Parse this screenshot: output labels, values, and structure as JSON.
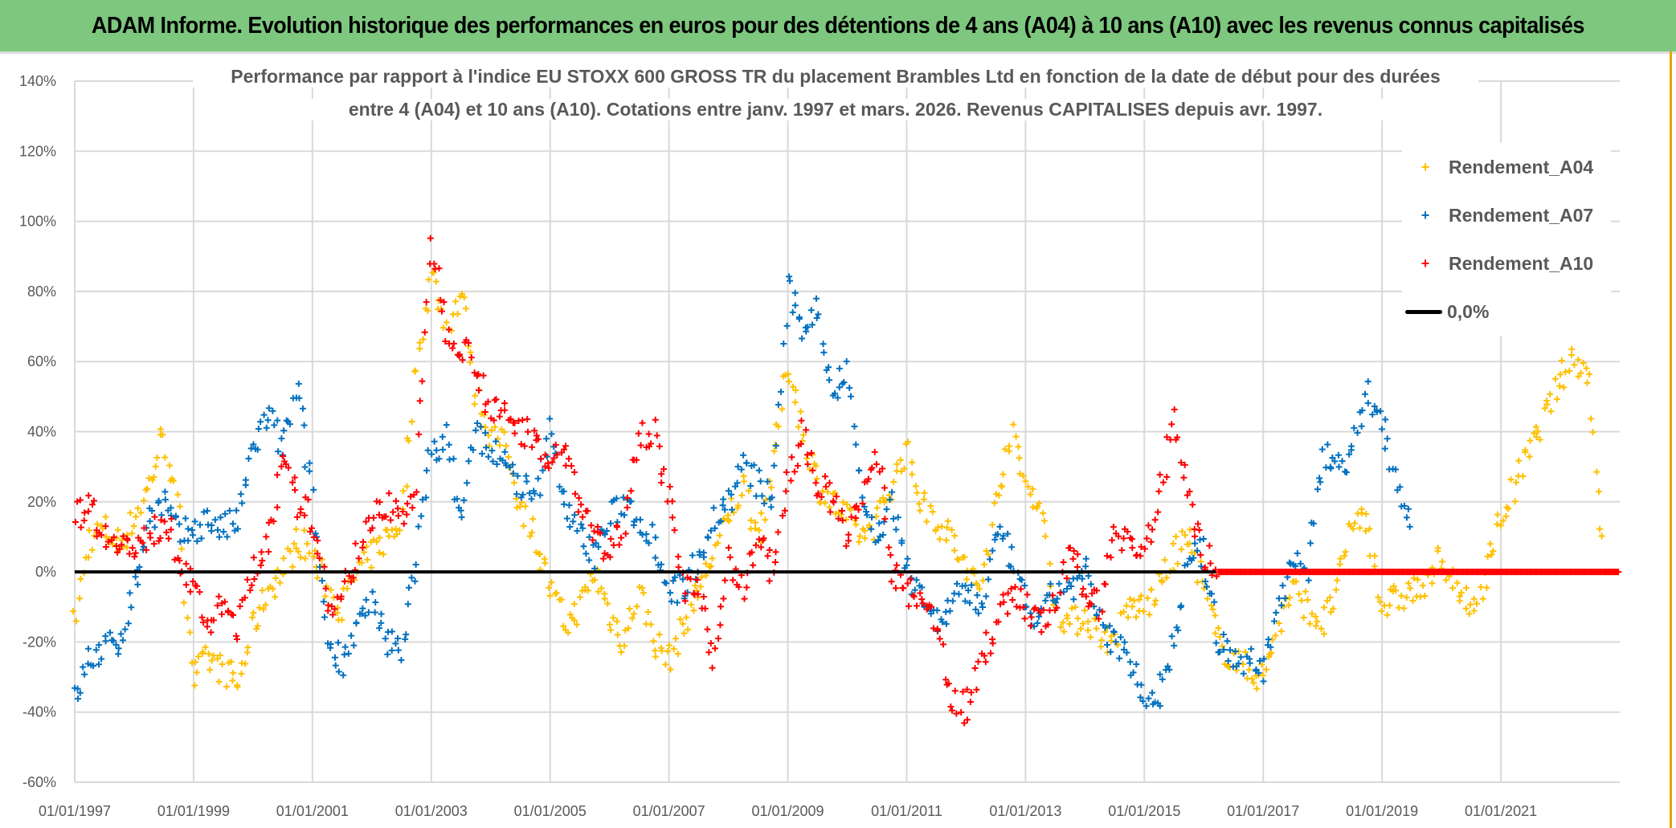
{
  "title": "ADAM Informe. Evolution historique des performances en euros pour des détentions de 4 ans (A04) à 10 ans (A10) avec les revenus connus capitalisés",
  "chart_data": {
    "type": "scatter",
    "title_lines": [
      "Performance par rapport à l'indice EU STOXX 600 GROSS TR  du placement Brambles Ltd en fonction de la date de début pour des durées",
      "entre 4 (A04) et 10 ans (A10). Cotations entre janv. 1997 et mars. 2026. Revenus CAPITALISES depuis avr. 1997."
    ],
    "xlabel": "",
    "ylabel": "",
    "xlim": [
      "1997-01-01",
      "2023-01-01"
    ],
    "ylim": [
      -60,
      140
    ],
    "y_ticks": [
      "140%",
      "120%",
      "100%",
      "80%",
      "60%",
      "40%",
      "20%",
      "0%",
      "-20%",
      "-40%",
      "-60%"
    ],
    "x_ticks": [
      "01/01/1997",
      "01/01/1999",
      "01/01/2001",
      "01/01/2003",
      "01/01/2005",
      "01/01/2007",
      "01/01/2009",
      "01/01/2011",
      "01/01/2013",
      "01/01/2015",
      "01/01/2017",
      "01/01/2019",
      "01/01/2021"
    ],
    "grid": true,
    "legend_position": "top-right",
    "reference_line": {
      "name": "0,0%",
      "value": 0,
      "color": "#000000"
    },
    "series": [
      {
        "name": "Rendement_A04",
        "color": "#ffc000",
        "marker": "plus",
        "points": [
          [
            "1997-01",
            -15
          ],
          [
            "1997-04",
            10
          ],
          [
            "1997-07",
            12
          ],
          [
            "1997-10",
            8
          ],
          [
            "1998-01",
            15
          ],
          [
            "1998-04",
            25
          ],
          [
            "1998-07",
            40
          ],
          [
            "1998-10",
            15
          ],
          [
            "1999-01",
            -30
          ],
          [
            "1999-04",
            -25
          ],
          [
            "1999-07",
            -28
          ],
          [
            "1999-10",
            -32
          ],
          [
            "2000-01",
            -15
          ],
          [
            "2000-04",
            -5
          ],
          [
            "2000-07",
            0
          ],
          [
            "2000-10",
            10
          ],
          [
            "2001-01",
            5
          ],
          [
            "2001-04",
            -5
          ],
          [
            "2001-07",
            -10
          ],
          [
            "2001-10",
            0
          ],
          [
            "2002-01",
            5
          ],
          [
            "2002-04",
            10
          ],
          [
            "2002-07",
            15
          ],
          [
            "2002-10",
            60
          ],
          [
            "2003-01",
            85
          ],
          [
            "2003-04",
            70
          ],
          [
            "2003-07",
            80
          ],
          [
            "2003-10",
            50
          ],
          [
            "2004-01",
            40
          ],
          [
            "2004-04",
            35
          ],
          [
            "2004-07",
            20
          ],
          [
            "2004-10",
            10
          ],
          [
            "2005-01",
            -5
          ],
          [
            "2005-04",
            -15
          ],
          [
            "2005-07",
            -10
          ],
          [
            "2005-10",
            0
          ],
          [
            "2006-01",
            -12
          ],
          [
            "2006-04",
            -20
          ],
          [
            "2006-07",
            -5
          ],
          [
            "2006-10",
            -20
          ],
          [
            "2007-01",
            -25
          ],
          [
            "2007-04",
            -15
          ],
          [
            "2007-07",
            -5
          ],
          [
            "2007-10",
            5
          ],
          [
            "2008-01",
            15
          ],
          [
            "2008-04",
            25
          ],
          [
            "2008-07",
            10
          ],
          [
            "2008-10",
            30
          ],
          [
            "2009-01",
            60
          ],
          [
            "2009-04",
            40
          ],
          [
            "2009-07",
            25
          ],
          [
            "2009-10",
            20
          ],
          [
            "2010-01",
            15
          ],
          [
            "2010-04",
            10
          ],
          [
            "2010-07",
            15
          ],
          [
            "2010-10",
            25
          ],
          [
            "2011-01",
            35
          ],
          [
            "2011-04",
            20
          ],
          [
            "2011-07",
            15
          ],
          [
            "2011-10",
            10
          ],
          [
            "2012-01",
            0
          ],
          [
            "2012-04",
            -5
          ],
          [
            "2012-07",
            20
          ],
          [
            "2012-10",
            40
          ],
          [
            "2013-01",
            25
          ],
          [
            "2013-04",
            20
          ],
          [
            "2013-07",
            -10
          ],
          [
            "2013-10",
            -15
          ],
          [
            "2014-01",
            -12
          ],
          [
            "2014-04",
            -18
          ],
          [
            "2014-07",
            -20
          ],
          [
            "2014-10",
            -10
          ],
          [
            "2015-01",
            -10
          ],
          [
            "2015-04",
            -5
          ],
          [
            "2015-07",
            5
          ],
          [
            "2015-10",
            10
          ],
          [
            "2016-01",
            -5
          ],
          [
            "2016-04",
            -20
          ],
          [
            "2016-07",
            -25
          ],
          [
            "2016-10",
            -28
          ],
          [
            "2017-01",
            -30
          ],
          [
            "2017-04",
            -15
          ],
          [
            "2017-07",
            -5
          ],
          [
            "2017-10",
            -10
          ],
          [
            "2018-01",
            -15
          ],
          [
            "2018-04",
            -5
          ],
          [
            "2018-07",
            15
          ],
          [
            "2018-10",
            15
          ],
          [
            "2019-01",
            -10
          ],
          [
            "2019-04",
            -8
          ],
          [
            "2019-07",
            -5
          ],
          [
            "2019-10",
            -5
          ],
          [
            "2020-01",
            5
          ],
          [
            "2020-04",
            -5
          ],
          [
            "2020-07",
            -12
          ],
          [
            "2020-10",
            0
          ],
          [
            "2021-01",
            15
          ],
          [
            "2021-04",
            25
          ],
          [
            "2021-07",
            35
          ],
          [
            "2021-10",
            45
          ],
          [
            "2022-01",
            55
          ],
          [
            "2022-04",
            62
          ],
          [
            "2022-07",
            55
          ],
          [
            "2022-10",
            0
          ],
          [
            "2023-01",
            0
          ]
        ]
      },
      {
        "name": "Rendement_A07",
        "color": "#0070c0",
        "marker": "plus",
        "points": [
          [
            "1997-01",
            -37
          ],
          [
            "1997-04",
            -25
          ],
          [
            "1997-07",
            -22
          ],
          [
            "1997-10",
            -20
          ],
          [
            "1998-01",
            -5
          ],
          [
            "1998-04",
            15
          ],
          [
            "1998-07",
            20
          ],
          [
            "1998-10",
            10
          ],
          [
            "1999-01",
            12
          ],
          [
            "1999-04",
            15
          ],
          [
            "1999-07",
            12
          ],
          [
            "1999-10",
            15
          ],
          [
            "2000-01",
            35
          ],
          [
            "2000-04",
            45
          ],
          [
            "2000-07",
            35
          ],
          [
            "2000-10",
            52
          ],
          [
            "2001-01",
            20
          ],
          [
            "2001-04",
            -20
          ],
          [
            "2001-07",
            -25
          ],
          [
            "2001-10",
            -15
          ],
          [
            "2002-01",
            -10
          ],
          [
            "2002-04",
            -20
          ],
          [
            "2002-07",
            -22
          ],
          [
            "2002-10",
            5
          ],
          [
            "2003-01",
            35
          ],
          [
            "2003-04",
            38
          ],
          [
            "2003-07",
            15
          ],
          [
            "2003-10",
            40
          ],
          [
            "2004-01",
            35
          ],
          [
            "2004-04",
            30
          ],
          [
            "2004-07",
            25
          ],
          [
            "2004-10",
            20
          ],
          [
            "2005-01",
            40
          ],
          [
            "2005-04",
            20
          ],
          [
            "2005-07",
            10
          ],
          [
            "2005-10",
            5
          ],
          [
            "2006-01",
            15
          ],
          [
            "2006-04",
            20
          ],
          [
            "2006-07",
            15
          ],
          [
            "2006-10",
            10
          ],
          [
            "2007-01",
            -5
          ],
          [
            "2007-04",
            -5
          ],
          [
            "2007-07",
            5
          ],
          [
            "2007-10",
            15
          ],
          [
            "2008-01",
            20
          ],
          [
            "2008-04",
            30
          ],
          [
            "2008-07",
            25
          ],
          [
            "2008-10",
            20
          ],
          [
            "2009-01",
            80
          ],
          [
            "2009-04",
            70
          ],
          [
            "2009-07",
            75
          ],
          [
            "2009-10",
            50
          ],
          [
            "2010-01",
            60
          ],
          [
            "2010-04",
            20
          ],
          [
            "2010-07",
            10
          ],
          [
            "2010-10",
            20
          ],
          [
            "2011-01",
            0
          ],
          [
            "2011-04",
            -5
          ],
          [
            "2011-07",
            -15
          ],
          [
            "2011-10",
            -10
          ],
          [
            "2012-01",
            -5
          ],
          [
            "2012-04",
            -10
          ],
          [
            "2012-07",
            10
          ],
          [
            "2012-10",
            5
          ],
          [
            "2013-01",
            -10
          ],
          [
            "2013-04",
            -15
          ],
          [
            "2013-07",
            -5
          ],
          [
            "2013-10",
            -5
          ],
          [
            "2014-01",
            0
          ],
          [
            "2014-04",
            -15
          ],
          [
            "2014-07",
            -20
          ],
          [
            "2014-10",
            -25
          ],
          [
            "2015-01",
            -35
          ],
          [
            "2015-04",
            -35
          ],
          [
            "2015-07",
            -20
          ],
          [
            "2015-10",
            5
          ],
          [
            "2016-01",
            5
          ],
          [
            "2016-04",
            -20
          ],
          [
            "2016-07",
            -25
          ],
          [
            "2016-10",
            -25
          ],
          [
            "2017-01",
            -28
          ],
          [
            "2017-04",
            -10
          ],
          [
            "2017-07",
            5
          ],
          [
            "2017-10",
            0
          ],
          [
            "2018-01",
            35
          ],
          [
            "2018-04",
            30
          ],
          [
            "2018-07",
            35
          ],
          [
            "2018-10",
            50
          ],
          [
            "2019-01",
            45
          ],
          [
            "2019-04",
            25
          ],
          [
            "2019-07",
            15
          ]
        ]
      },
      {
        "name": "Rendement_A10",
        "color": "#ff0000",
        "marker": "plus",
        "points": [
          [
            "1997-01",
            15
          ],
          [
            "1997-04",
            20
          ],
          [
            "1997-07",
            10
          ],
          [
            "1997-10",
            10
          ],
          [
            "1998-01",
            5
          ],
          [
            "1998-04",
            10
          ],
          [
            "1998-07",
            15
          ],
          [
            "1998-10",
            5
          ],
          [
            "1999-01",
            -5
          ],
          [
            "1999-04",
            -15
          ],
          [
            "1999-07",
            -10
          ],
          [
            "1999-10",
            -15
          ],
          [
            "2000-01",
            0
          ],
          [
            "2000-04",
            10
          ],
          [
            "2000-07",
            30
          ],
          [
            "2000-10",
            20
          ],
          [
            "2001-01",
            15
          ],
          [
            "2001-04",
            -10
          ],
          [
            "2001-07",
            -5
          ],
          [
            "2001-10",
            5
          ],
          [
            "2002-01",
            15
          ],
          [
            "2002-04",
            20
          ],
          [
            "2002-07",
            15
          ],
          [
            "2002-10",
            25
          ],
          [
            "2003-01",
            95
          ],
          [
            "2003-04",
            70
          ],
          [
            "2003-07",
            65
          ],
          [
            "2003-10",
            60
          ],
          [
            "2004-01",
            45
          ],
          [
            "2004-04",
            45
          ],
          [
            "2004-07",
            40
          ],
          [
            "2004-10",
            40
          ],
          [
            "2005-01",
            30
          ],
          [
            "2005-04",
            35
          ],
          [
            "2005-07",
            20
          ],
          [
            "2005-10",
            10
          ],
          [
            "2006-01",
            5
          ],
          [
            "2006-04",
            15
          ],
          [
            "2006-07",
            40
          ],
          [
            "2006-10",
            40
          ],
          [
            "2007-01",
            20
          ],
          [
            "2007-04",
            -5
          ],
          [
            "2007-07",
            -5
          ],
          [
            "2007-10",
            -28
          ],
          [
            "2008-01",
            5
          ],
          [
            "2008-04",
            -5
          ],
          [
            "2008-07",
            10
          ],
          [
            "2008-10",
            0
          ],
          [
            "2009-01",
            25
          ],
          [
            "2009-04",
            40
          ],
          [
            "2009-07",
            25
          ],
          [
            "2009-10",
            20
          ],
          [
            "2010-01",
            10
          ],
          [
            "2010-04",
            20
          ],
          [
            "2010-07",
            35
          ],
          [
            "2010-10",
            0
          ],
          [
            "2011-01",
            -5
          ],
          [
            "2011-04",
            -10
          ],
          [
            "2011-07",
            -15
          ],
          [
            "2011-10",
            -35
          ],
          [
            "2012-01",
            -40
          ],
          [
            "2012-04",
            -25
          ],
          [
            "2012-07",
            -15
          ],
          [
            "2012-10",
            -5
          ],
          [
            "2013-01",
            -10
          ],
          [
            "2013-04",
            -15
          ],
          [
            "2013-07",
            -10
          ],
          [
            "2013-10",
            5
          ],
          [
            "2014-01",
            -5
          ],
          [
            "2014-04",
            -10
          ],
          [
            "2014-07",
            10
          ],
          [
            "2014-10",
            10
          ],
          [
            "2015-01",
            5
          ],
          [
            "2015-04",
            20
          ],
          [
            "2015-07",
            45
          ],
          [
            "2015-10",
            20
          ],
          [
            "2016-01",
            5
          ],
          [
            "2016-04",
            0
          ],
          [
            "2016-07",
            0
          ],
          [
            "2017-01",
            0
          ],
          [
            "2017-07",
            0
          ],
          [
            "2018-01",
            0
          ],
          [
            "2018-07",
            0
          ],
          [
            "2019-01",
            0
          ],
          [
            "2019-07",
            0
          ],
          [
            "2020-01",
            0
          ],
          [
            "2020-07",
            0
          ],
          [
            "2021-01",
            0
          ],
          [
            "2021-07",
            0
          ],
          [
            "2022-01",
            0
          ],
          [
            "2022-07",
            0
          ],
          [
            "2023-01",
            0
          ]
        ]
      }
    ]
  }
}
